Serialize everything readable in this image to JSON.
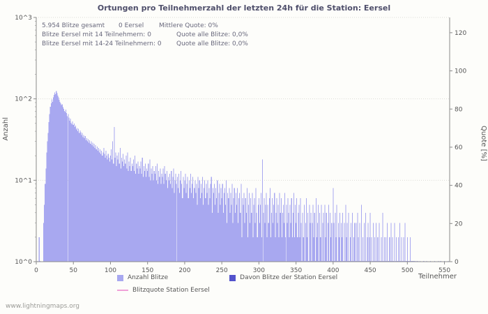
{
  "page": {
    "watermark": "www.lightningmaps.org"
  },
  "stats": {
    "line1_total": "5.954 Blitze gesamt",
    "line1_station": "0 Eersel",
    "line1_quote": "Mittlere Quote: 0%",
    "line2_label": "Blitze Eersel mit 14 Teilnehmern: 0",
    "line2_quote": "Quote alle Blitze: 0,0%",
    "line3_label": "Blitze Eersel mit 14-24 Teilnehmern: 0",
    "line3_quote": "Quote alle Blitze: 0,0%"
  },
  "legend": {
    "items": [
      {
        "label": "Anzahl Blitze",
        "color": "#a8a8f0",
        "type": "box"
      },
      {
        "label": "Davon Blitze der Station Eersel",
        "color": "#5353cc",
        "type": "box"
      },
      {
        "label": "Blitzquote Station Eersel",
        "color": "#f0a0d8",
        "type": "line"
      }
    ]
  },
  "chart_data": {
    "type": "bar",
    "title": "Ortungen pro Teilnehmerzahl der letzten 24h für die Station: Eersel",
    "xlabel": "Teilnehmer",
    "ylabel": "Anzahl",
    "ylabel_right": "Quote [%]",
    "x_start": 0,
    "x_max": 557,
    "x_ticks": [
      0,
      50,
      100,
      150,
      200,
      250,
      300,
      350,
      400,
      450,
      500,
      550
    ],
    "y_left_scale": "log10",
    "y_left_ticks": [
      "10^0",
      "10^1",
      "10^2",
      "10^3"
    ],
    "y_left_decades": 3,
    "y_right_ticks": [
      0,
      20,
      40,
      60,
      80,
      100,
      120
    ],
    "y_right_max": 128,
    "grid": "dotted-horizontal-decades",
    "legend_position": "bottom",
    "series": [
      {
        "name": "Anzahl Blitze",
        "type": "bar",
        "color": "#a8a8f0",
        "values": [
          0,
          0,
          1,
          0,
          2,
          1,
          0,
          0,
          0,
          0,
          3,
          5,
          9,
          14,
          22,
          30,
          38,
          52,
          65,
          80,
          88,
          98,
          92,
          104,
          112,
          120,
          114,
          125,
          117,
          110,
          104,
          97,
          92,
          88,
          84,
          86,
          79,
          75,
          71,
          69,
          74,
          67,
          61,
          65,
          59,
          54,
          57,
          51,
          49,
          53,
          48,
          50,
          45,
          47,
          42,
          44,
          40,
          43,
          38,
          41,
          39,
          36,
          38,
          34,
          36,
          33,
          35,
          31,
          33,
          30,
          32,
          29,
          31,
          28,
          30,
          27,
          29,
          26,
          28,
          25,
          27,
          24,
          26,
          23,
          25,
          22,
          24,
          21,
          23,
          20,
          22,
          25,
          21,
          19,
          23,
          20,
          18,
          21,
          19,
          17,
          20,
          24,
          18,
          30,
          16,
          45,
          19,
          22,
          15,
          20,
          18,
          22,
          16,
          25,
          14,
          19,
          17,
          21,
          15,
          18,
          16,
          20,
          14,
          22,
          13,
          17,
          15,
          19,
          13,
          16,
          15,
          18,
          13,
          20,
          12,
          16,
          14,
          17,
          12,
          15,
          14,
          17,
          12,
          19,
          11,
          15,
          13,
          16,
          11,
          14,
          13,
          16,
          11,
          18,
          10,
          14,
          12,
          15,
          10,
          13,
          12,
          15,
          10,
          16,
          9,
          13,
          11,
          14,
          9,
          12,
          11,
          14,
          9,
          15,
          12,
          10,
          13,
          8,
          11,
          10,
          12,
          9,
          13,
          8,
          11,
          14,
          7,
          10,
          12,
          9,
          11,
          8,
          12,
          7,
          10,
          13,
          9,
          6,
          11,
          8,
          10,
          12,
          7,
          9,
          11,
          6,
          10,
          8,
          12,
          7,
          9,
          11,
          6,
          8,
          10,
          7,
          9,
          5,
          11,
          8,
          10,
          6,
          9,
          7,
          11,
          5,
          8,
          10,
          6,
          9,
          7,
          10,
          5,
          8,
          6,
          9,
          11,
          4,
          8,
          7,
          9,
          5,
          8,
          6,
          10,
          4,
          7,
          9,
          5,
          8,
          6,
          9,
          4,
          7,
          8,
          5,
          10,
          3,
          7,
          6,
          8,
          4,
          7,
          5,
          9,
          3,
          6,
          8,
          4,
          7,
          5,
          8,
          3,
          6,
          7,
          4,
          9,
          2,
          6,
          5,
          7,
          3,
          6,
          4,
          8,
          2,
          5,
          7,
          3,
          6,
          4,
          7,
          2,
          5,
          6,
          3,
          8,
          4,
          2,
          5,
          6,
          3,
          5,
          7,
          2,
          18,
          4,
          6,
          3,
          5,
          7,
          2,
          5,
          3,
          6,
          8,
          2,
          4,
          6,
          3,
          5,
          7,
          2,
          4,
          6,
          3,
          5,
          2,
          7,
          4,
          6,
          2,
          4,
          5,
          3,
          7,
          2,
          5,
          3,
          6,
          4,
          2,
          5,
          3,
          6,
          2,
          4,
          7,
          2,
          5,
          3,
          6,
          2,
          4,
          5,
          2,
          6,
          3,
          1,
          4,
          2,
          5,
          1,
          3,
          6,
          2,
          4,
          1,
          5,
          3,
          4,
          1,
          3,
          5,
          2,
          4,
          1,
          6,
          2,
          3,
          5,
          1,
          4,
          2,
          5,
          1,
          3,
          4,
          1,
          5,
          2,
          4,
          1,
          3,
          5,
          1,
          4,
          2,
          3,
          1,
          8,
          3,
          1,
          4,
          2,
          5,
          1,
          3,
          2,
          4,
          1,
          3,
          2,
          4,
          1,
          3,
          1,
          5,
          2,
          3,
          1,
          4,
          1,
          2,
          3,
          1,
          4,
          1,
          2,
          3,
          1,
          3,
          1,
          4,
          2,
          1,
          3,
          1,
          5,
          1,
          2,
          1,
          3,
          1,
          4,
          1,
          2,
          3,
          1,
          2,
          4,
          1,
          2,
          1,
          3,
          1,
          2,
          1,
          3,
          1,
          2,
          1,
          3,
          1,
          1,
          2,
          1,
          4,
          1,
          2,
          1,
          2,
          1,
          3,
          1,
          1,
          2,
          1,
          3,
          1,
          2,
          1,
          1,
          3,
          1,
          2,
          1,
          1,
          2,
          1,
          3,
          1,
          2,
          1,
          1,
          2,
          1,
          3,
          1,
          1,
          2,
          1,
          1,
          1,
          2,
          1,
          1,
          1,
          1,
          1,
          1,
          0,
          1,
          0,
          1,
          0,
          0,
          1,
          0,
          0,
          0,
          0,
          1,
          0,
          0,
          0,
          1,
          0,
          0,
          0,
          0,
          1,
          0,
          0,
          0,
          0,
          0,
          1,
          0,
          0,
          0,
          0,
          1,
          0,
          0,
          1,
          0,
          0,
          0,
          0,
          1,
          0,
          0,
          0,
          0,
          1
        ]
      },
      {
        "name": "Davon Blitze der Station Eersel",
        "type": "bar",
        "color": "#5353cc",
        "total": 0,
        "values_all_zero": true
      },
      {
        "name": "Blitzquote Station Eersel",
        "type": "line",
        "color": "#f0a0d8",
        "constant_value": 0
      }
    ]
  }
}
